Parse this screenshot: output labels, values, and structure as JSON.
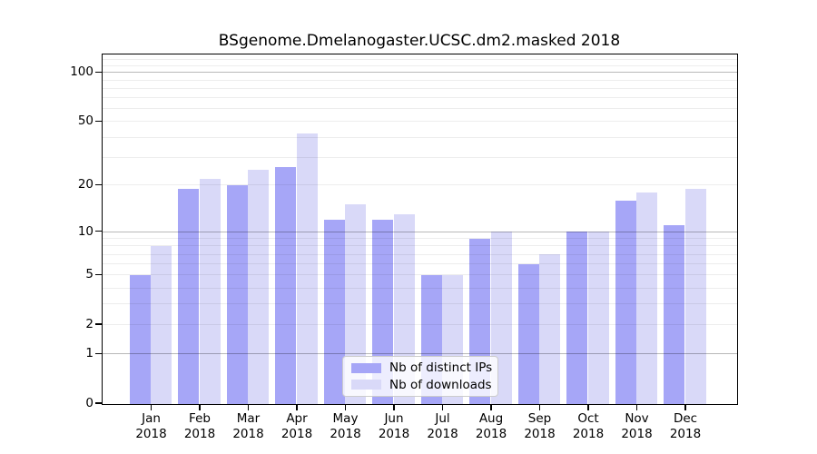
{
  "chart_data": {
    "type": "bar",
    "title": "BSgenome.Dmelanogaster.UCSC.dm2.masked 2018",
    "year": "2018",
    "categories": [
      "Jan",
      "Feb",
      "Mar",
      "Apr",
      "May",
      "Jun",
      "Jul",
      "Aug",
      "Sep",
      "Oct",
      "Nov",
      "Dec"
    ],
    "series": [
      {
        "name": "Nb of distinct IPs",
        "color": "#a6a6f7",
        "values": [
          5,
          19,
          20,
          26,
          12,
          12,
          5,
          9,
          6,
          10,
          16,
          11
        ]
      },
      {
        "name": "Nb of downloads",
        "color": "#d9d9f8",
        "values": [
          8,
          22,
          25,
          42,
          15,
          13,
          5,
          10,
          7,
          10,
          18,
          19
        ]
      }
    ],
    "xlabel": "",
    "ylabel": "",
    "yscale": "log1p",
    "ylim": [
      0,
      122
    ],
    "yticks": [
      0,
      1,
      2,
      5,
      10,
      20,
      50,
      100
    ],
    "grid": {
      "major": [
        1,
        10,
        100
      ],
      "minor": [
        2,
        3,
        4,
        5,
        6,
        7,
        8,
        9,
        20,
        30,
        40,
        50,
        60,
        70,
        80,
        90,
        110,
        120
      ]
    },
    "legend_position": "bottom-center"
  },
  "legend": {
    "items": [
      {
        "label": "Nb of distinct IPs"
      },
      {
        "label": "Nb of downloads"
      }
    ]
  }
}
